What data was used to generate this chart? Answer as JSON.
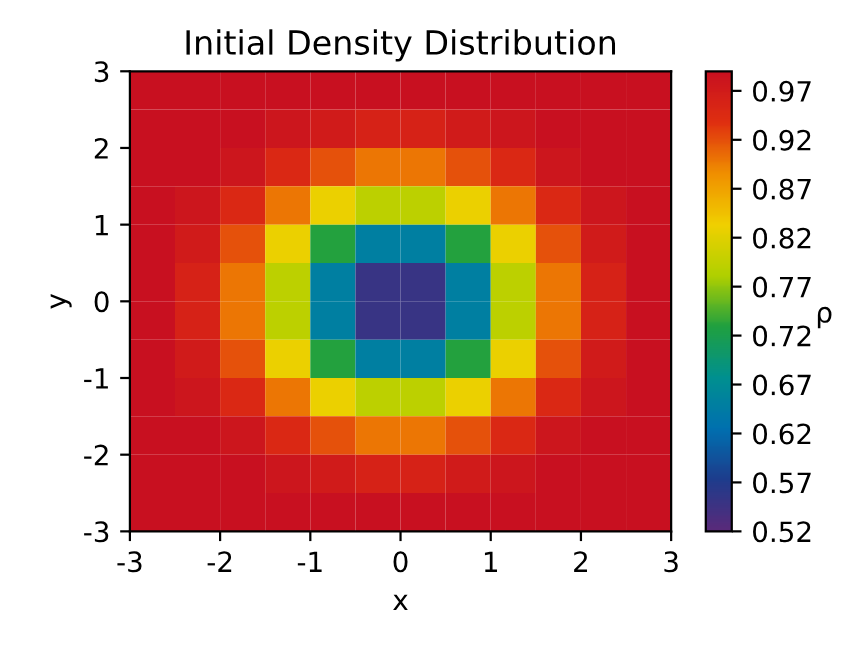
{
  "chart_data": {
    "type": "heatmap",
    "title": "Initial Density Distribution",
    "xlabel": "x",
    "ylabel": "y",
    "clabel": "ρ",
    "cells": [
      [
        0.99,
        0.99,
        0.99,
        0.99,
        0.99,
        0.99,
        0.99,
        0.99,
        0.99,
        0.99,
        0.99,
        0.99
      ],
      [
        0.99,
        0.99,
        0.99,
        0.98,
        0.97,
        0.96,
        0.96,
        0.97,
        0.98,
        0.99,
        0.99,
        0.99
      ],
      [
        0.99,
        0.99,
        0.98,
        0.95,
        0.92,
        0.9,
        0.9,
        0.92,
        0.95,
        0.98,
        0.99,
        0.99
      ],
      [
        0.99,
        0.98,
        0.95,
        0.9,
        0.83,
        0.79,
        0.79,
        0.83,
        0.9,
        0.95,
        0.98,
        0.99
      ],
      [
        0.99,
        0.97,
        0.92,
        0.83,
        0.73,
        0.65,
        0.65,
        0.73,
        0.83,
        0.92,
        0.97,
        0.99
      ],
      [
        0.99,
        0.96,
        0.9,
        0.79,
        0.65,
        0.55,
        0.55,
        0.65,
        0.79,
        0.9,
        0.96,
        0.99
      ],
      [
        0.99,
        0.96,
        0.9,
        0.79,
        0.65,
        0.55,
        0.55,
        0.65,
        0.79,
        0.9,
        0.96,
        0.99
      ],
      [
        0.99,
        0.97,
        0.92,
        0.83,
        0.73,
        0.65,
        0.65,
        0.73,
        0.83,
        0.92,
        0.97,
        0.99
      ],
      [
        0.99,
        0.98,
        0.95,
        0.9,
        0.83,
        0.79,
        0.79,
        0.83,
        0.9,
        0.95,
        0.98,
        0.99
      ],
      [
        0.99,
        0.99,
        0.98,
        0.95,
        0.92,
        0.9,
        0.9,
        0.92,
        0.95,
        0.98,
        0.99,
        0.99
      ],
      [
        0.99,
        0.99,
        0.99,
        0.98,
        0.97,
        0.96,
        0.96,
        0.97,
        0.98,
        0.99,
        0.99,
        0.99
      ],
      [
        0.99,
        0.99,
        0.99,
        0.99,
        0.99,
        0.99,
        0.99,
        0.99,
        0.99,
        0.99,
        0.99,
        0.99
      ]
    ],
    "colors": [
      "#5a2a7a",
      "#1e3c8c",
      "#0070b0",
      "#009090",
      "#20a040",
      "#b0d000",
      "#f0d000",
      "#f09000",
      "#e03010",
      "#c81020"
    ],
    "clim": [
      0.52,
      0.99
    ],
    "cticks": [
      0.52,
      0.57,
      0.62,
      0.67,
      0.72,
      0.77,
      0.82,
      0.87,
      0.92,
      0.97
    ],
    "xlim": [
      -3,
      3
    ],
    "ylim": [
      -3,
      3
    ],
    "xticks": [
      -3,
      -2,
      -1,
      0,
      1,
      2,
      3
    ],
    "yticks": [
      -3,
      -2,
      -1,
      0,
      1,
      2,
      3
    ]
  }
}
